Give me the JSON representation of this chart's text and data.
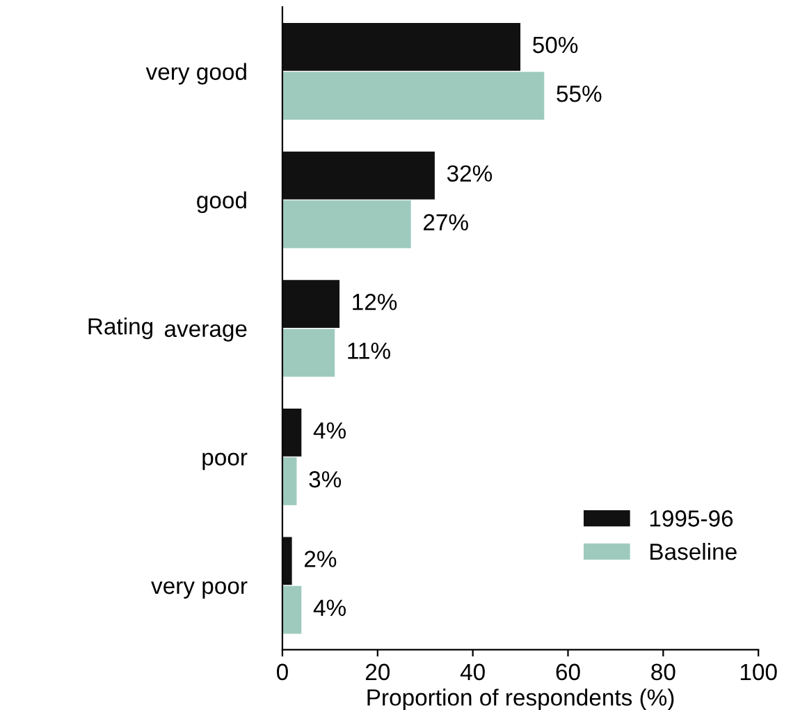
{
  "chart_data": {
    "type": "bar",
    "orientation": "horizontal",
    "xlabel": "Proportion of respondents (%)",
    "ylabel": "Rating",
    "categories": [
      "very good",
      "good",
      "average",
      "poor",
      "very poor"
    ],
    "series": [
      {
        "name": "1995-96",
        "color": "#111111",
        "values": [
          50,
          32,
          12,
          4,
          2
        ],
        "value_labels": [
          "50%",
          "32%",
          "12%",
          "4%",
          "2%"
        ]
      },
      {
        "name": "Baseline",
        "color": "#9ecabe",
        "values": [
          55,
          27,
          11,
          3,
          4
        ],
        "value_labels": [
          "55%",
          "27%",
          "11%",
          "3%",
          "4%"
        ]
      }
    ],
    "xlim": [
      0,
      100
    ],
    "xticks": [
      0,
      20,
      40,
      60,
      80,
      100
    ],
    "legend": "bottom right",
    "grid": false
  }
}
